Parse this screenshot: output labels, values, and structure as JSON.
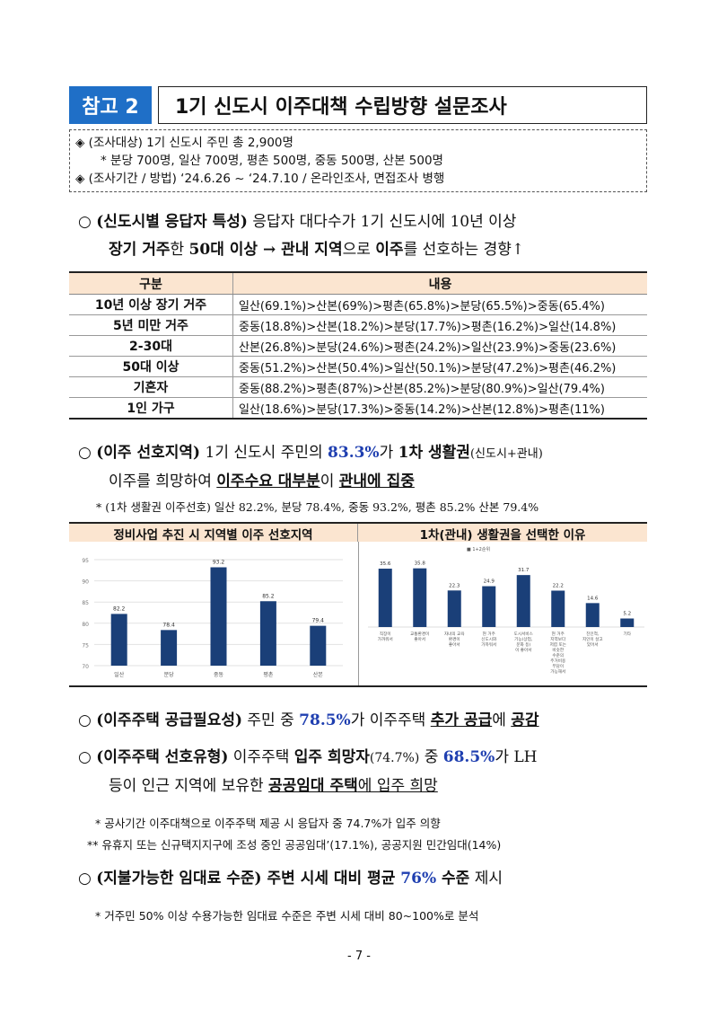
{
  "title": {
    "tag": "참고 2",
    "text": "1기 신도시 이주대책 수립방향 설문조사"
  },
  "info": {
    "line1": "◈ (조사대상) 1기 신도시 주민 총 2,900명",
    "line2": "* 분당 700명, 일산 700명, 평촌 500명, 중동 500명, 산본 500명",
    "line3": "◈ (조사기간 / 방법) ‘24.6.26 ~ ‘24.7.10 / 온라인조사, 면접조사 병행"
  },
  "section1": {
    "bullet": "○",
    "label": "(신도시별 응답자 특성)",
    "text_a": " 응답자 대다수가 1기 신도시에 10년 이상",
    "bold_a": "장기 거주",
    "text_b": "한 ",
    "bold_b": "50대 이상 → 관내 지역",
    "text_c": "으로 ",
    "bold_c": "이주",
    "text_d": "를 선호하는 경향↑"
  },
  "table": {
    "headers": [
      "구분",
      "내용"
    ],
    "rows": [
      [
        "10년 이상 장기 거주",
        "일산(69.1%)>산본(69%)>평촌(65.8%)>분당(65.5%)>중동(65.4%)"
      ],
      [
        "5년 미만 거주",
        "중동(18.8%)>산본(18.2%)>분당(17.7%)>평촌(16.2%)>일산(14.8%)"
      ],
      [
        "2-30대",
        "산본(26.8%)>분당(24.6%)>평촌(24.2%)>일산(23.9%)>중동(23.6%)"
      ],
      [
        "50대 이상",
        "중동(51.2%)>산본(50.4%)>일산(50.1%)>분당(47.2%)>평촌(46.2%)"
      ],
      [
        "기혼자",
        "중동(88.2%)>평촌(87%)>산본(85.2%)>분당(80.9%)>일산(79.4%)"
      ],
      [
        "1인 가구",
        "일산(18.6%)>분당(17.3%)>중동(14.2%)>산본(12.8%)>평촌(11%)"
      ]
    ]
  },
  "section2": {
    "bullet": "○",
    "label": "(이주 선호지역)",
    "text_a": " 1기 신도시 주민의 ",
    "pct": "83.3%",
    "text_b": "가 ",
    "bold_a": "1차 생활권",
    "small_a": "(신도시+관내)",
    "text_c": "이주를 희망하여 ",
    "ul_a": "이주수요 대부분",
    "text_d": "이 ",
    "ul_b": "관내에 집중",
    "note": "* (1차 생활권 이주선호) 일산 82.2%, 분당 78.4%, 중동 93.2%, 평촌 85.2% 산본 79.4%"
  },
  "charts_header": {
    "left": "정비사업 추진 시 지역별 이주 선호지역",
    "right": "1차(관내) 생활권을 선택한 이유"
  },
  "chart_data": [
    {
      "type": "bar",
      "categories": [
        "일산",
        "분당",
        "중동",
        "평촌",
        "산본"
      ],
      "values": [
        82.2,
        78.4,
        93.2,
        85.2,
        79.4
      ],
      "value_labels": [
        "82.2",
        "78.4",
        "93.2",
        "85.2",
        "79.4"
      ],
      "yticks": [
        "95",
        "90",
        "85",
        "80",
        "75",
        "70"
      ],
      "ylim": [
        70,
        95
      ],
      "color": "#1a3f78"
    },
    {
      "type": "bar",
      "legend": "■ 1+2순위",
      "categories": [
        "직장이 가까워서",
        "교통환경이 좋아서",
        "자녀의 교육 환경이 좋아서",
        "현 거주 신도시와 가까워서",
        "도시서비스 기능(상업, 문화 등) 이 좋아서",
        "현 거주 지역보다 저렴 또는 비슷한 수준의 주거비용 부담이 가능해서",
        "친인척, 지인이 살고 있어서",
        "기타"
      ],
      "values": [
        35.6,
        35.8,
        22.3,
        24.9,
        31.7,
        22.2,
        14.6,
        5.2
      ],
      "value_labels": [
        "35.6",
        "35.8",
        "22.3",
        "24.9",
        "31.7",
        "22.2",
        "14.6",
        "5.2"
      ],
      "ylim": [
        0,
        40
      ],
      "color": "#1a3f78"
    }
  ],
  "section3": {
    "bullet": "○",
    "label": "(이주주택 공급필요성)",
    "text_a": " 주민 중 ",
    "pct": "78.5%",
    "text_b": "가 이주주택 ",
    "ul_a": "추가 공급",
    "text_c": "에 ",
    "ul_b": "공감"
  },
  "section4": {
    "bullet": "○",
    "label": "(이주주택 선호유형)",
    "text_a": " 이주주택 ",
    "bold_a": "입주 희망자",
    "small_a": "(74.7%)",
    "text_b": " 중 ",
    "pct": "68.5%",
    "text_c": "가 LH",
    "text_d": "등이 인근 지역에 보유한 ",
    "ul_a": "공공임대 주택",
    "ul_b": "에 입주 희망",
    "note1": "* 공사기간 이주대책으로 이주주택 제공 시 응답자 중 74.7%가 입주 의향",
    "note2": "** 유휴지 또는 신규택지지구에 조성 중인 공공임대’(17.1%), 공공지원 민간임대(14%)"
  },
  "section5": {
    "bullet": "○",
    "label": "(지불가능한 임대료 수준)",
    "text_a": " 주변 시세 대비 평균 ",
    "pct": "76%",
    "text_b": " 수준",
    "text_c": " 제시",
    "note": "* 거주민 50% 이상 수용가능한 임대료 수준은 주변 시세 대비 80~100%로 분석"
  },
  "page_number": "- 7 -"
}
